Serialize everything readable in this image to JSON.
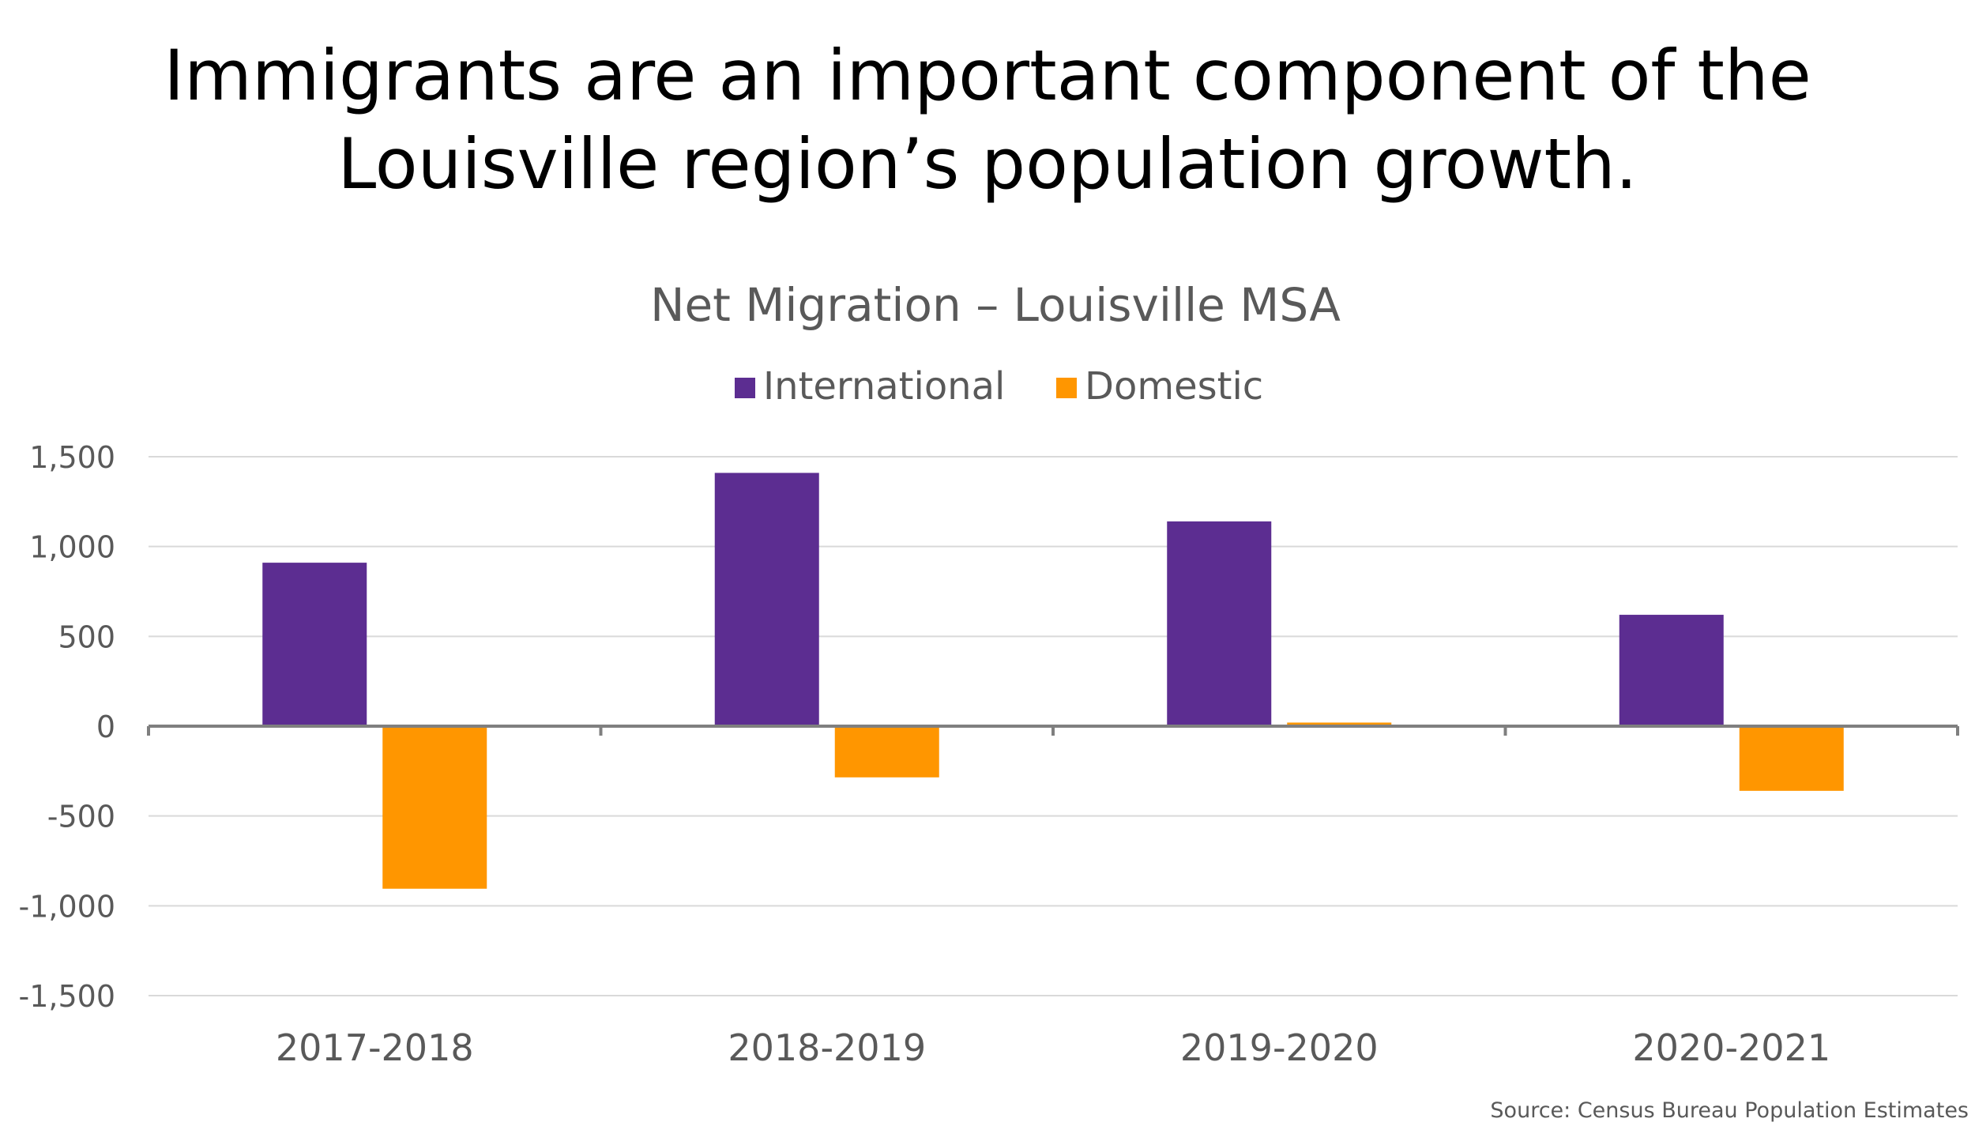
{
  "slide": {
    "title_line1": "Immigrants are an important component of the",
    "title_line2": "Louisville region’s population growth.",
    "source": "Source: Census Bureau Population Estimates"
  },
  "chart_data": {
    "type": "bar",
    "title": "Net Migration – Louisville MSA",
    "categories": [
      "2017-2018",
      "2018-2019",
      "2019-2020",
      "2020-2021"
    ],
    "series": [
      {
        "name": "International",
        "color": "#5C2D91",
        "values": [
          910,
          1410,
          1140,
          620
        ]
      },
      {
        "name": "Domestic",
        "color": "#FF9600",
        "values": [
          -905,
          -285,
          20,
          -360
        ]
      }
    ],
    "ylim": [
      -1500,
      1500
    ],
    "yticks": [
      1500,
      1000,
      500,
      0,
      -500,
      -1000,
      -1500
    ],
    "ytick_labels": [
      "1,500",
      "1,000",
      "500",
      "0",
      "-500",
      "-1,000",
      "-1,500"
    ],
    "xlabel": "",
    "ylabel": "",
    "grid": true,
    "legend_position": "top"
  }
}
